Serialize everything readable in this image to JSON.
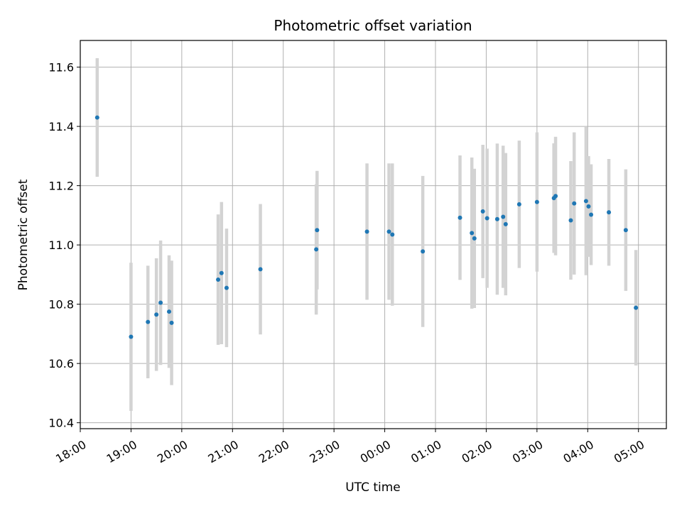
{
  "chart_data": {
    "type": "scatter",
    "title": "Photometric offset variation",
    "xlabel": "UTC time",
    "ylabel": "Photometric offset",
    "grid": true,
    "legend": "none",
    "colors": {
      "point": "#1f77b4",
      "errorbar": "#d3d3d3",
      "grid": "#b0b0b0"
    },
    "x_time_format": "HH:MM",
    "xlim": [
      "18:00",
      "05:33"
    ],
    "ylim": [
      10.38,
      11.69
    ],
    "x_ticks": [
      "18:00",
      "19:00",
      "20:00",
      "21:00",
      "22:00",
      "23:00",
      "00:00",
      "01:00",
      "02:00",
      "03:00",
      "04:00",
      "05:00"
    ],
    "y_ticks": [
      10.4,
      10.6,
      10.8,
      11.0,
      11.2,
      11.4,
      11.6
    ],
    "y_tick_labels": [
      "10.4",
      "10.6",
      "10.8",
      "11.0",
      "11.2",
      "11.4",
      "11.6"
    ],
    "series": [
      {
        "points": [
          {
            "t": "18:20",
            "y": 11.43,
            "err": 0.2
          },
          {
            "t": "19:00",
            "y": 10.69,
            "err": 0.25
          },
          {
            "t": "19:20",
            "y": 10.74,
            "err": 0.19
          },
          {
            "t": "19:30",
            "y": 10.765,
            "err": 0.19
          },
          {
            "t": "19:35",
            "y": 10.805,
            "err": 0.21
          },
          {
            "t": "19:45",
            "y": 10.775,
            "err": 0.19
          },
          {
            "t": "19:48",
            "y": 10.737,
            "err": 0.21
          },
          {
            "t": "20:43",
            "y": 10.883,
            "err": 0.22
          },
          {
            "t": "20:47",
            "y": 10.905,
            "err": 0.24
          },
          {
            "t": "20:53",
            "y": 10.855,
            "err": 0.2
          },
          {
            "t": "21:33",
            "y": 10.918,
            "err": 0.22
          },
          {
            "t": "22:39",
            "y": 10.985,
            "err": 0.22
          },
          {
            "t": "22:40",
            "y": 11.05,
            "err": 0.2
          },
          {
            "t": "23:39",
            "y": 11.045,
            "err": 0.23
          },
          {
            "t": "00:05",
            "y": 11.045,
            "err": 0.23
          },
          {
            "t": "00:09",
            "y": 11.035,
            "err": 0.24
          },
          {
            "t": "00:45",
            "y": 10.978,
            "err": 0.255
          },
          {
            "t": "01:29",
            "y": 11.092,
            "err": 0.21
          },
          {
            "t": "01:43",
            "y": 11.04,
            "err": 0.255
          },
          {
            "t": "01:46",
            "y": 11.022,
            "err": 0.235
          },
          {
            "t": "01:56",
            "y": 11.113,
            "err": 0.225
          },
          {
            "t": "02:01",
            "y": 11.09,
            "err": 0.235
          },
          {
            "t": "02:13",
            "y": 11.087,
            "err": 0.255
          },
          {
            "t": "02:20",
            "y": 11.095,
            "err": 0.24
          },
          {
            "t": "02:23",
            "y": 11.07,
            "err": 0.24
          },
          {
            "t": "02:39",
            "y": 11.137,
            "err": 0.215
          },
          {
            "t": "03:00",
            "y": 11.145,
            "err": 0.235
          },
          {
            "t": "03:20",
            "y": 11.158,
            "err": 0.185
          },
          {
            "t": "03:22",
            "y": 11.165,
            "err": 0.2
          },
          {
            "t": "03:40",
            "y": 11.083,
            "err": 0.2
          },
          {
            "t": "03:44",
            "y": 11.14,
            "err": 0.24
          },
          {
            "t": "03:58",
            "y": 11.148,
            "err": 0.25
          },
          {
            "t": "04:01",
            "y": 11.13,
            "err": 0.17
          },
          {
            "t": "04:04",
            "y": 11.102,
            "err": 0.17
          },
          {
            "t": "04:25",
            "y": 11.11,
            "err": 0.18
          },
          {
            "t": "04:45",
            "y": 11.05,
            "err": 0.205
          },
          {
            "t": "04:57",
            "y": 10.788,
            "err": 0.195
          }
        ]
      }
    ]
  }
}
